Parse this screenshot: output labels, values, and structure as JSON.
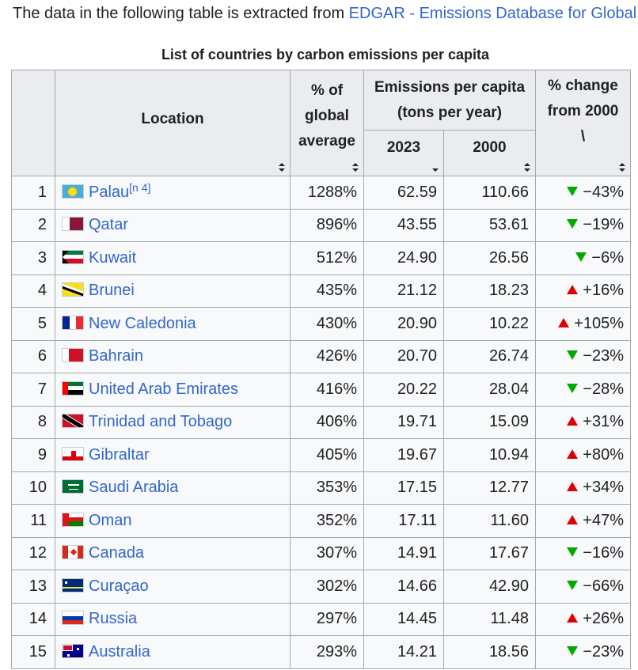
{
  "intro": {
    "text": "The data in the following table is extracted from ",
    "link": "EDGAR - Emissions Database for Global"
  },
  "caption": "List of countries by carbon emissions per capita",
  "headers": {
    "location": "Location",
    "pct_global_1": "% of",
    "pct_global_2": "global",
    "pct_global_3": "average",
    "emissions_1": "Emissions per capita",
    "emissions_2": "(tons per year)",
    "y2023": "2023",
    "y2000": "2000",
    "change_1": "% change",
    "change_2": "from 2000"
  },
  "rows": [
    {
      "rank": "1",
      "location": "Palau",
      "note": "[n 4]",
      "pct": "1288%",
      "e2023": "62.59",
      "e2000": "110.66",
      "change": "−43%",
      "dir": "down",
      "flag": "palau-flag-icon"
    },
    {
      "rank": "2",
      "location": "Qatar",
      "pct": "896%",
      "e2023": "43.55",
      "e2000": "53.61",
      "change": "−19%",
      "dir": "down",
      "flag": "qatar-flag-icon"
    },
    {
      "rank": "3",
      "location": "Kuwait",
      "pct": "512%",
      "e2023": "24.90",
      "e2000": "26.56",
      "change": "−6%",
      "dir": "down",
      "flag": "kuwait-flag-icon"
    },
    {
      "rank": "4",
      "location": "Brunei",
      "pct": "435%",
      "e2023": "21.12",
      "e2000": "18.23",
      "change": "+16%",
      "dir": "up",
      "flag": "brunei-flag-icon"
    },
    {
      "rank": "5",
      "location": "New Caledonia",
      "pct": "430%",
      "e2023": "20.90",
      "e2000": "10.22",
      "change": "+105%",
      "dir": "up",
      "flag": "new-caledonia-flag-icon"
    },
    {
      "rank": "6",
      "location": "Bahrain",
      "pct": "426%",
      "e2023": "20.70",
      "e2000": "26.74",
      "change": "−23%",
      "dir": "down",
      "flag": "bahrain-flag-icon"
    },
    {
      "rank": "7",
      "location": "United Arab Emirates",
      "pct": "416%",
      "e2023": "20.22",
      "e2000": "28.04",
      "change": "−28%",
      "dir": "down",
      "flag": "uae-flag-icon"
    },
    {
      "rank": "8",
      "location": "Trinidad and Tobago",
      "pct": "406%",
      "e2023": "19.71",
      "e2000": "15.09",
      "change": "+31%",
      "dir": "up",
      "flag": "trinidad-and-tobago-flag-icon"
    },
    {
      "rank": "9",
      "location": "Gibraltar",
      "pct": "405%",
      "e2023": "19.67",
      "e2000": "10.94",
      "change": "+80%",
      "dir": "up",
      "flag": "gibraltar-flag-icon"
    },
    {
      "rank": "10",
      "location": "Saudi Arabia",
      "pct": "353%",
      "e2023": "17.15",
      "e2000": "12.77",
      "change": "+34%",
      "dir": "up",
      "flag": "saudi-arabia-flag-icon"
    },
    {
      "rank": "11",
      "location": "Oman",
      "pct": "352%",
      "e2023": "17.11",
      "e2000": "11.60",
      "change": "+47%",
      "dir": "up",
      "flag": "oman-flag-icon"
    },
    {
      "rank": "12",
      "location": "Canada",
      "pct": "307%",
      "e2023": "14.91",
      "e2000": "17.67",
      "change": "−16%",
      "dir": "down",
      "flag": "canada-flag-icon"
    },
    {
      "rank": "13",
      "location": "Curaçao",
      "pct": "302%",
      "e2023": "14.66",
      "e2000": "42.90",
      "change": "−66%",
      "dir": "down",
      "flag": "curacao-flag-icon"
    },
    {
      "rank": "14",
      "location": "Russia",
      "pct": "297%",
      "e2023": "14.45",
      "e2000": "11.48",
      "change": "+26%",
      "dir": "up",
      "flag": "russia-flag-icon"
    },
    {
      "rank": "15",
      "location": "Australia",
      "pct": "293%",
      "e2023": "14.21",
      "e2000": "18.56",
      "change": "−23%",
      "dir": "down",
      "flag": "australia-flag-icon"
    }
  ],
  "colors": {
    "link": "#3366cc",
    "header_bg": "#eaecf0",
    "cell_bg": "#f8f9fa",
    "border": "#a2a9b1",
    "decrease": "#00aa00",
    "increase": "#dd0000"
  }
}
